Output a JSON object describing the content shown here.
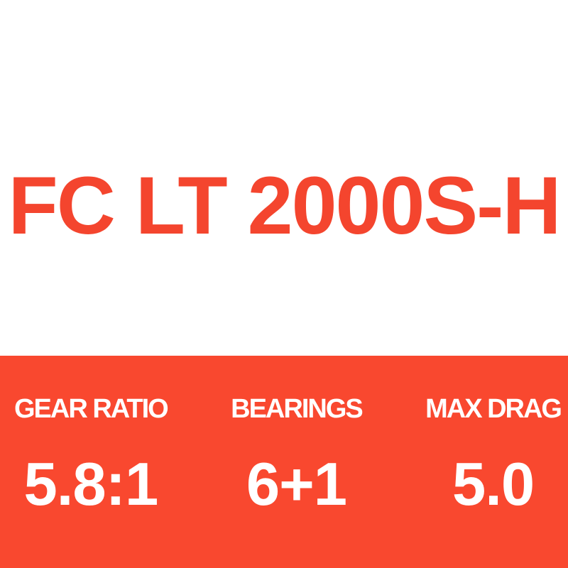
{
  "product": {
    "title": "FC LT 2000S-H"
  },
  "specs": [
    {
      "label": "GEAR RATIO",
      "value": "5.8:1"
    },
    {
      "label": "BEARINGS",
      "value": "6+1"
    },
    {
      "label": "MAX DRAG",
      "value": "5.0"
    }
  ],
  "colors": {
    "title": "#f4452e",
    "band": "#f9482f",
    "spec_text": "#ffffff",
    "page_background": "#ffffff"
  }
}
